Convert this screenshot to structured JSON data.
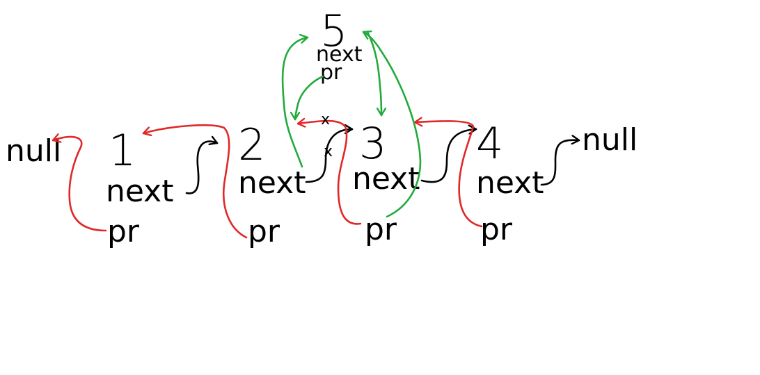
{
  "nodes": [
    {
      "value": "1",
      "next_label": "next",
      "prev_label": "pr"
    },
    {
      "value": "2",
      "next_label": "next",
      "prev_label": "pr"
    },
    {
      "value": "3",
      "next_label": "next",
      "prev_label": "pr"
    },
    {
      "value": "4",
      "next_label": "next",
      "prev_label": "pr"
    }
  ],
  "inserted_node": {
    "value": "5",
    "next_label": "next",
    "prev_label": "pr"
  },
  "null_left": "null",
  "null_right": "null",
  "removed_marks": [
    "x",
    "x"
  ],
  "colors": {
    "ink": "#000000",
    "prev_link": "#e02828",
    "new_link": "#22aa3c",
    "removed": "#22aa3c",
    "background": "#ffffff"
  }
}
